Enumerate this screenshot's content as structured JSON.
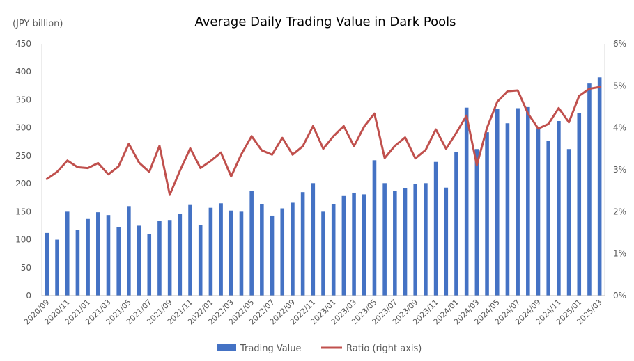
{
  "chart_data": {
    "type": "bar",
    "title": "Average Daily Trading Value in Dark Pools",
    "ylabel_left_unit": "(JPY billion)",
    "ylim_left": [
      0,
      450
    ],
    "yticks_left": [
      "0",
      "50",
      "100",
      "150",
      "200",
      "250",
      "300",
      "350",
      "400",
      "450"
    ],
    "ylim_right": [
      0,
      6
    ],
    "yticks_right": [
      "0%",
      "1%",
      "2%",
      "3%",
      "4%",
      "5%",
      "6%"
    ],
    "grid": false,
    "legend_position": "bottom",
    "x_tick_labels": [
      "2020/09",
      "2020/11",
      "2021/01",
      "2021/03",
      "2021/05",
      "2021/07",
      "2021/09",
      "2021/11",
      "2022/01",
      "2022/03",
      "2022/05",
      "2022/07",
      "2022/09",
      "2022/11",
      "2023/01",
      "2023/03",
      "2023/05",
      "2023/07",
      "2023/09",
      "2023/11",
      "2024/01",
      "2024/03",
      "2024/05",
      "2024/07",
      "2024/09",
      "2024/11",
      "2025/01",
      "2025/03"
    ],
    "categories": [
      "2020/09",
      "2020/10",
      "2020/11",
      "2020/12",
      "2021/01",
      "2021/02",
      "2021/03",
      "2021/04",
      "2021/05",
      "2021/06",
      "2021/07",
      "2021/08",
      "2021/09",
      "2021/10",
      "2021/11",
      "2021/12",
      "2022/01",
      "2022/02",
      "2022/03",
      "2022/04",
      "2022/05",
      "2022/06",
      "2022/07",
      "2022/08",
      "2022/09",
      "2022/10",
      "2022/11",
      "2022/12",
      "2023/01",
      "2023/02",
      "2023/03",
      "2023/04",
      "2023/05",
      "2023/06",
      "2023/07",
      "2023/08",
      "2023/09",
      "2023/10",
      "2023/11",
      "2023/12",
      "2024/01",
      "2024/02",
      "2024/03",
      "2024/04",
      "2024/05",
      "2024/06",
      "2024/07",
      "2024/08",
      "2024/09",
      "2024/10",
      "2024/11",
      "2024/12",
      "2025/01",
      "2025/02",
      "2025/03"
    ],
    "series": [
      {
        "name": "Trading Value",
        "type": "bar",
        "axis": "left",
        "color": "#4472C4",
        "values": [
          112,
          100,
          150,
          117,
          137,
          149,
          144,
          122,
          160,
          125,
          110,
          133,
          134,
          146,
          162,
          126,
          157,
          165,
          152,
          150,
          187,
          163,
          143,
          156,
          166,
          185,
          201,
          150,
          164,
          178,
          184,
          181,
          242,
          201,
          187,
          192,
          200,
          201,
          239,
          193,
          257,
          336,
          262,
          292,
          334,
          308,
          335,
          337,
          299,
          277,
          312,
          262,
          326,
          379,
          390
        ]
      },
      {
        "name": "Ratio (right axis)",
        "type": "line",
        "axis": "right",
        "color": "#C0504D",
        "values": [
          2.78,
          2.95,
          3.22,
          3.06,
          3.04,
          3.16,
          2.89,
          3.08,
          3.62,
          3.17,
          2.95,
          3.57,
          2.4,
          2.98,
          3.51,
          3.04,
          3.21,
          3.41,
          2.84,
          3.37,
          3.8,
          3.46,
          3.36,
          3.76,
          3.36,
          3.56,
          4.04,
          3.5,
          3.8,
          4.04,
          3.56,
          4.03,
          4.34,
          3.28,
          3.57,
          3.77,
          3.27,
          3.47,
          3.96,
          3.5,
          3.88,
          4.29,
          3.11,
          4.0,
          4.62,
          4.87,
          4.89,
          4.34,
          3.98,
          4.09,
          4.47,
          4.13,
          4.76,
          4.93,
          4.97
        ]
      }
    ]
  }
}
